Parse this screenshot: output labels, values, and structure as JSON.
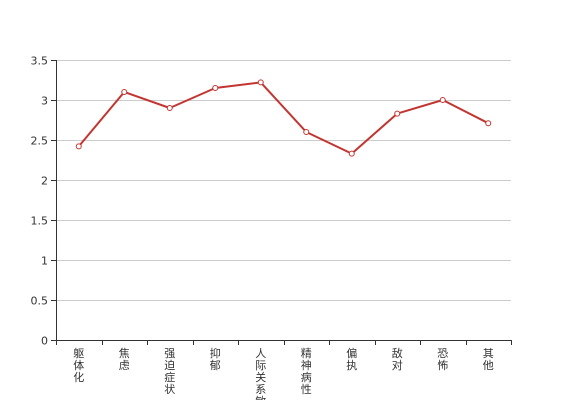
{
  "chart_data": {
    "type": "line",
    "title": "",
    "xlabel": "",
    "ylabel": "",
    "categories": [
      "躯体化",
      "焦虑",
      "强迫症状",
      "抑郁",
      "人际关系敏感",
      "精神病性",
      "偏执",
      "敌对",
      "恐怖",
      "其他"
    ],
    "series": [
      {
        "values": [
          2.42,
          3.1,
          2.9,
          3.15,
          3.22,
          2.6,
          2.33,
          2.83,
          3.0,
          2.71
        ]
      }
    ],
    "ylim": [
      0,
      3.5
    ],
    "yticks": [
      "0",
      "0.5",
      "1",
      "1.5",
      "2",
      "2.5",
      "3",
      "3.5"
    ],
    "grid": true,
    "legend": "none",
    "colors": {
      "line": "#c23531",
      "grid": "#cccccc",
      "axis": "#333333",
      "marker_fill": "#ffffff"
    }
  }
}
